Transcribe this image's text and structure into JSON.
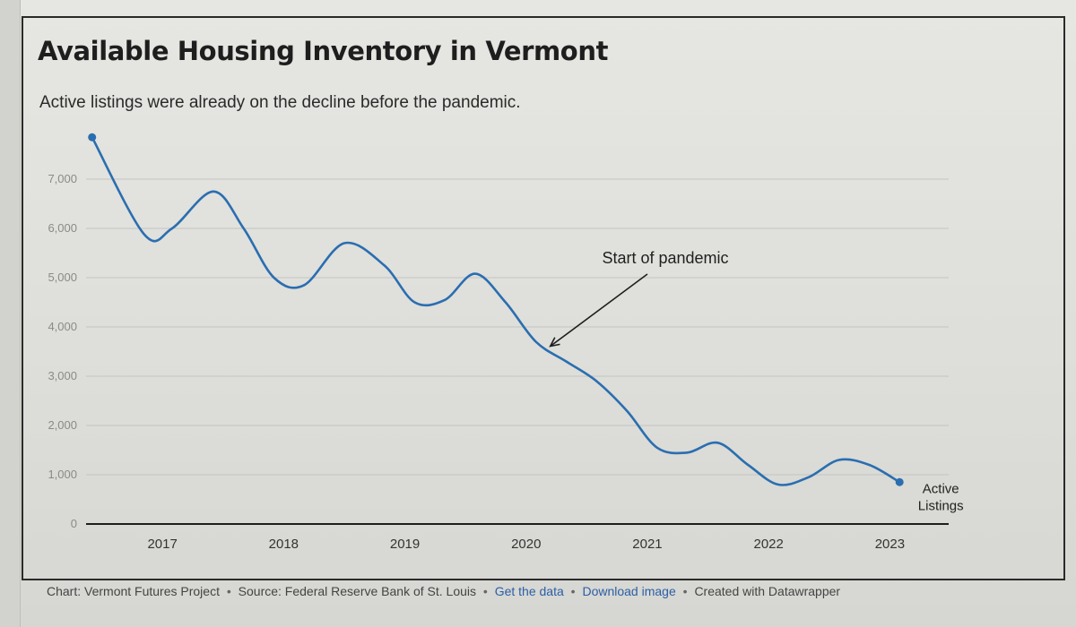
{
  "chart_data": {
    "type": "line",
    "title": "Available Housing Inventory in Vermont",
    "subtitle": "Active listings were already on the decline before the pandemic.",
    "xlabel": "",
    "ylabel": "",
    "xlim": [
      2016.4,
      2023.5
    ],
    "ylim": [
      0,
      7000
    ],
    "y_ticks": [
      0,
      1000,
      2000,
      3000,
      4000,
      5000,
      6000,
      7000
    ],
    "y_tick_labels": [
      "0",
      "1,000",
      "2,000",
      "3,000",
      "4,000",
      "5,000",
      "6,000",
      "7,000"
    ],
    "x_ticks": [
      2017,
      2018,
      2019,
      2020,
      2021,
      2022,
      2023
    ],
    "x_tick_labels": [
      "2017",
      "2018",
      "2019",
      "2020",
      "2021",
      "2022",
      "2023"
    ],
    "grid": true,
    "series": [
      {
        "name": "Active Listings",
        "color": "#2a6eb0",
        "x": [
          2016.42,
          2016.85,
          2017.08,
          2017.42,
          2017.67,
          2017.92,
          2018.17,
          2018.5,
          2018.83,
          2019.08,
          2019.33,
          2019.58,
          2019.83,
          2020.08,
          2020.33,
          2020.58,
          2020.83,
          2021.08,
          2021.33,
          2021.58,
          2021.83,
          2022.08,
          2022.33,
          2022.58,
          2022.83,
          2023.08
        ],
        "values": [
          7850,
          5880,
          6000,
          6750,
          6000,
          5000,
          4850,
          5700,
          5250,
          4500,
          4550,
          5080,
          4500,
          3700,
          3300,
          2900,
          2300,
          1550,
          1450,
          1650,
          1200,
          800,
          950,
          1300,
          1200,
          850
        ]
      }
    ],
    "annotations": [
      {
        "text": "Start of pandemic",
        "x": 2020.17,
        "y": 3500
      }
    ],
    "series_end_label": [
      "Active",
      "Listings"
    ]
  },
  "footer": {
    "chart_credit": "Chart: Vermont Futures Project",
    "source": "Source: Federal Reserve Bank of St. Louis",
    "get_data": "Get the data",
    "download": "Download image",
    "created_with": "Created with Datawrapper"
  }
}
